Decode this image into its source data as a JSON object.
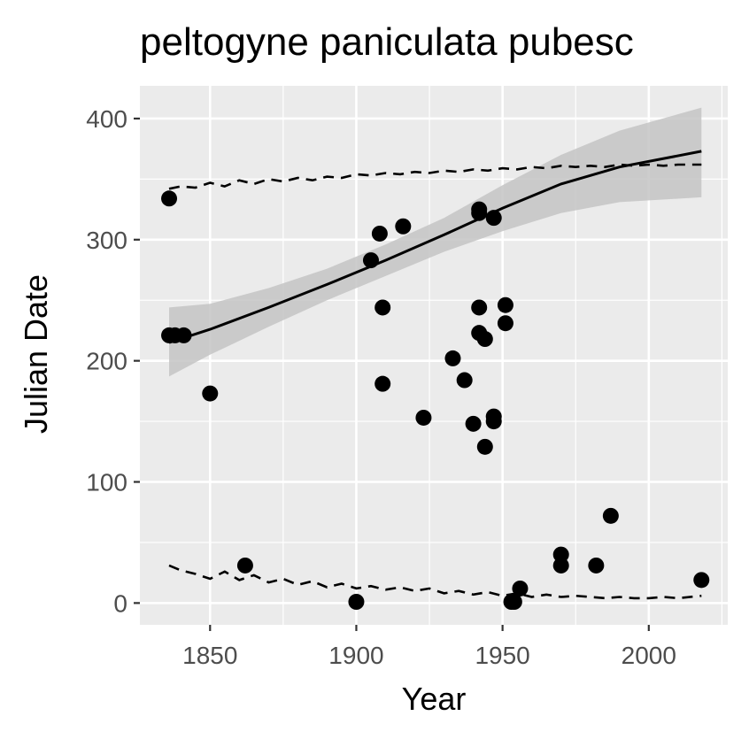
{
  "chart_data": {
    "type": "scatter",
    "title": "peltogyne paniculata pubesc",
    "xlabel": "Year",
    "ylabel": "Julian Date",
    "xlim": [
      1826,
      2027
    ],
    "ylim": [
      -18,
      427
    ],
    "x_ticks": [
      1850,
      1900,
      1950,
      2000
    ],
    "y_ticks": [
      0,
      100,
      200,
      300,
      400
    ],
    "x_tick_labels": [
      "1850",
      "1900",
      "1950",
      "2000"
    ],
    "y_tick_labels": [
      "0",
      "100",
      "200",
      "300",
      "400"
    ],
    "grid": true,
    "colors": {
      "panel": "#ebebeb",
      "grid": "#ffffff",
      "points": "#000000",
      "ribbon": "#c4c4c4",
      "tick_text": "#4d4d4d"
    },
    "points": [
      {
        "x": 1836,
        "y": 334
      },
      {
        "x": 1836,
        "y": 221
      },
      {
        "x": 1838,
        "y": 221
      },
      {
        "x": 1841,
        "y": 221
      },
      {
        "x": 1850,
        "y": 173
      },
      {
        "x": 1862,
        "y": 31
      },
      {
        "x": 1900,
        "y": 1
      },
      {
        "x": 1905,
        "y": 283
      },
      {
        "x": 1908,
        "y": 305
      },
      {
        "x": 1909,
        "y": 244
      },
      {
        "x": 1909,
        "y": 181
      },
      {
        "x": 1916,
        "y": 311
      },
      {
        "x": 1923,
        "y": 153
      },
      {
        "x": 1933,
        "y": 202
      },
      {
        "x": 1937,
        "y": 184
      },
      {
        "x": 1940,
        "y": 148
      },
      {
        "x": 1942,
        "y": 325
      },
      {
        "x": 1942,
        "y": 322
      },
      {
        "x": 1942,
        "y": 244
      },
      {
        "x": 1942,
        "y": 223
      },
      {
        "x": 1944,
        "y": 218
      },
      {
        "x": 1944,
        "y": 129
      },
      {
        "x": 1947,
        "y": 318
      },
      {
        "x": 1947,
        "y": 154
      },
      {
        "x": 1947,
        "y": 150
      },
      {
        "x": 1951,
        "y": 246
      },
      {
        "x": 1951,
        "y": 231
      },
      {
        "x": 1953,
        "y": 1
      },
      {
        "x": 1954,
        "y": 1
      },
      {
        "x": 1956,
        "y": 12
      },
      {
        "x": 1970,
        "y": 40
      },
      {
        "x": 1970,
        "y": 31
      },
      {
        "x": 1982,
        "y": 31
      },
      {
        "x": 1987,
        "y": 72
      },
      {
        "x": 2018,
        "y": 19
      }
    ],
    "trend": {
      "x": [
        1836,
        1850,
        1870,
        1890,
        1910,
        1930,
        1950,
        1970,
        1990,
        2018
      ],
      "y": [
        215,
        226,
        244,
        263,
        283,
        304,
        326,
        346,
        360,
        373
      ],
      "lower": [
        187,
        205,
        228,
        250,
        270,
        290,
        307,
        322,
        331,
        335
      ],
      "upper": [
        244,
        247,
        260,
        276,
        296,
        318,
        345,
        370,
        390,
        409
      ]
    },
    "upper_dashed": {
      "x": [
        1836,
        1840,
        1845,
        1850,
        1855,
        1860,
        1865,
        1870,
        1875,
        1880,
        1885,
        1890,
        1895,
        1900,
        1905,
        1910,
        1915,
        1920,
        1925,
        1930,
        1935,
        1940,
        1945,
        1950,
        1955,
        1960,
        1965,
        1970,
        1975,
        1980,
        1985,
        1990,
        1995,
        2000,
        2005,
        2010,
        2018
      ],
      "y": [
        342,
        344,
        343,
        347,
        344,
        349,
        346,
        350,
        348,
        351,
        349,
        352,
        351,
        354,
        353,
        355,
        354,
        356,
        355,
        357,
        356,
        358,
        357,
        359,
        358,
        360,
        359,
        361,
        360,
        361,
        360,
        362,
        361,
        362,
        361,
        362,
        362
      ]
    },
    "lower_dashed": {
      "x": [
        1836,
        1840,
        1845,
        1850,
        1855,
        1860,
        1865,
        1870,
        1875,
        1880,
        1885,
        1890,
        1895,
        1900,
        1905,
        1910,
        1915,
        1920,
        1925,
        1930,
        1935,
        1940,
        1945,
        1950,
        1955,
        1960,
        1965,
        1970,
        1975,
        1980,
        1985,
        1990,
        1995,
        2000,
        2005,
        2010,
        2018
      ],
      "y": [
        31,
        27,
        24,
        20,
        26,
        19,
        23,
        17,
        20,
        15,
        18,
        13,
        16,
        12,
        14,
        11,
        13,
        10,
        12,
        8,
        10,
        7,
        9,
        6,
        8,
        5,
        7,
        5,
        6,
        5,
        4,
        5,
        4,
        4,
        5,
        4,
        6
      ]
    }
  }
}
